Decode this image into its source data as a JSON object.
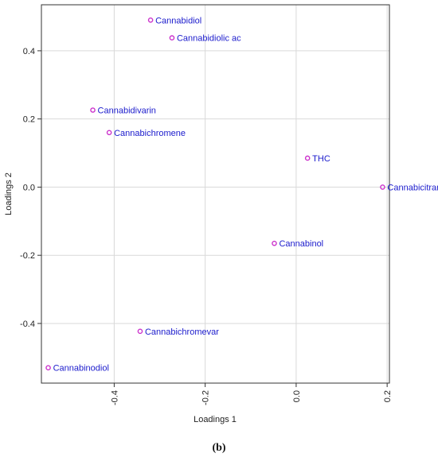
{
  "caption": "(b)",
  "chart_data": {
    "type": "scatter",
    "title": "",
    "xlabel": "Loadings 1",
    "ylabel": "Loadings 2",
    "xlim": [
      -0.56,
      0.205
    ],
    "ylim": [
      -0.575,
      0.535
    ],
    "xticks": [
      -0.4,
      -0.2,
      0.0,
      0.2
    ],
    "xtick_labels": [
      "-0.4",
      "-0.2",
      "0.0",
      "0.2"
    ],
    "yticks": [
      -0.4,
      -0.2,
      0.0,
      0.2,
      0.4
    ],
    "ytick_labels": [
      "-0.4",
      "-0.2",
      "0.0",
      "0.2",
      "0.4"
    ],
    "grid": true,
    "point_color": "#cc33cc",
    "label_color": "#1a1acc",
    "points": [
      {
        "label": "Cannabidiol",
        "x": -0.32,
        "y": 0.49
      },
      {
        "label": "Cannabidiolic ac",
        "x": -0.273,
        "y": 0.438
      },
      {
        "label": "Cannabidivarin",
        "x": -0.447,
        "y": 0.226
      },
      {
        "label": "Cannabichromene",
        "x": -0.411,
        "y": 0.16
      },
      {
        "label": "THC",
        "x": 0.025,
        "y": 0.085
      },
      {
        "label": "Cannabicitran",
        "x": 0.19,
        "y": 0.0
      },
      {
        "label": "Cannabinol",
        "x": -0.048,
        "y": -0.165
      },
      {
        "label": "Cannabichromevar",
        "x": -0.343,
        "y": -0.423
      },
      {
        "label": "Cannabinodiol",
        "x": -0.545,
        "y": -0.53
      }
    ]
  }
}
